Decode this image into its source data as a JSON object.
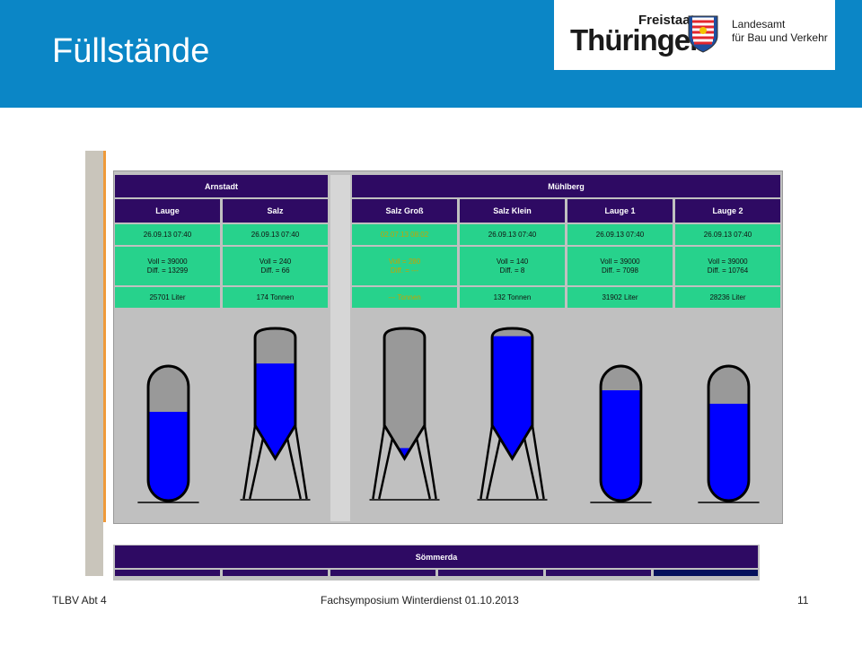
{
  "slide": {
    "title": "Füllstände",
    "footer_left": "TLBV Abt 4",
    "footer_center": "Fachsymposium Winterdienst  01.10.2013",
    "footer_right": "11"
  },
  "logo": {
    "line1": "Freistaat",
    "line2": "Thüringen",
    "agency_line1": "Landesamt",
    "agency_line2": "für Bau und Verkehr"
  },
  "colors": {
    "header_blue": "#0b86c6",
    "table_header": "#2e0a63",
    "status_green": "#27d28c",
    "fill_blue": "#0000ff",
    "empty_gray": "#999999",
    "warning_text": "#c8a200"
  },
  "groups": [
    {
      "name": "Arnstadt",
      "columns": [
        {
          "label": "Lauge",
          "timestamp": "26.09.13   07:40",
          "line1": "Voll = 39000",
          "line2": "Diff. = 13299",
          "amount": "25701 Liter",
          "tank_type": "tank",
          "fill_fraction": 0.66,
          "warning": false
        },
        {
          "label": "Salz",
          "timestamp": "26.09.13   07:40",
          "line1": "Voll = 240",
          "line2": "Diff. = 66",
          "amount": "174 Tonnen",
          "tank_type": "silo",
          "fill_fraction": 0.73,
          "warning": false
        }
      ]
    },
    {
      "name": "Mühlberg",
      "columns": [
        {
          "label": "Salz Groß",
          "timestamp": "02.07.13   08:02",
          "line1": "Voll = 280",
          "line2": "Diff. = ---",
          "amount": "--- Tonnen",
          "tank_type": "silo",
          "fill_fraction": 0.08,
          "warning": true
        },
        {
          "label": "Salz Klein",
          "timestamp": "26.09.13   07:40",
          "line1": "Voll = 140",
          "line2": "Diff. = 8",
          "amount": "132 Tonnen",
          "tank_type": "silo",
          "fill_fraction": 0.94,
          "warning": false
        },
        {
          "label": "Lauge 1",
          "timestamp": "26.09.13   07:40",
          "line1": "Voll = 39000",
          "line2": "Diff. = 7098",
          "amount": "31902 Liter",
          "tank_type": "tank",
          "fill_fraction": 0.82,
          "warning": false
        },
        {
          "label": "Lauge 2",
          "timestamp": "26.09.13   07:40",
          "line1": "Voll = 39000",
          "line2": "Diff. = 10764",
          "amount": "28236 Liter",
          "tank_type": "tank",
          "fill_fraction": 0.72,
          "warning": false
        }
      ]
    }
  ],
  "second_panel": {
    "name": "Sömmerda"
  }
}
